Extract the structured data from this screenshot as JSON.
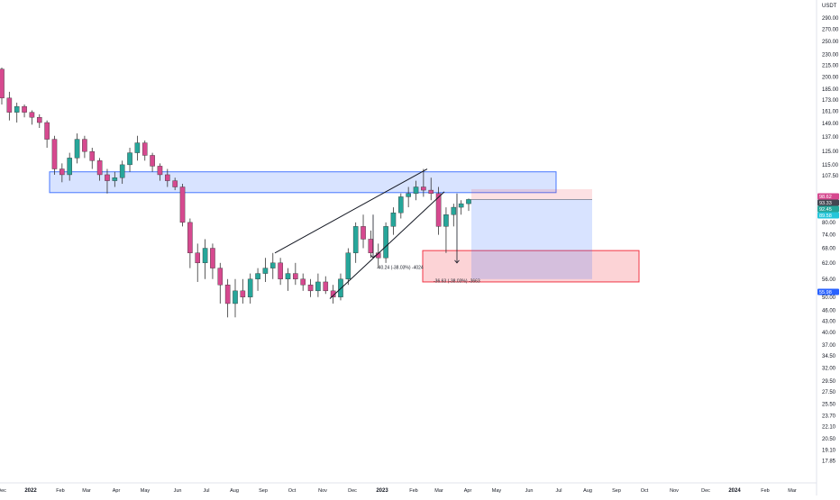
{
  "chart_data": {
    "type": "candlestick",
    "currency": "USDT",
    "y_scale": "log",
    "ylim": [
      17.0,
      310.0
    ],
    "y_ticks": [
      290.0,
      270.0,
      250.0,
      230.0,
      215.0,
      200.0,
      185.0,
      173.0,
      161.0,
      149.0,
      137.0,
      125.0,
      115.0,
      107.5,
      86.0,
      80.0,
      74.0,
      68.0,
      62.0,
      56.0,
      50.0,
      46.0,
      43.0,
      40.0,
      37.0,
      34.5,
      32.0,
      29.5,
      27.5,
      25.5,
      23.7,
      22.1,
      20.5,
      19.1,
      17.85
    ],
    "y_tick_labels": [
      "290.00",
      "270.00",
      "250.00",
      "230.00",
      "215.00",
      "200.00",
      "185.00",
      "173.00",
      "161.00",
      "149.00",
      "137.00",
      "125.00",
      "115.00",
      "107.50",
      "86.00",
      "80.00",
      "74.00",
      "68.00",
      "62.00",
      "56.00",
      "50.00",
      "46.00",
      "43.00",
      "40.00",
      "37.00",
      "34.50",
      "32.00",
      "29.50",
      "27.50",
      "25.50",
      "23.70",
      "22.10",
      "20.50",
      "19.10",
      "17.85"
    ],
    "x_ticks": [
      "Dec",
      "2022",
      "Feb",
      "Mar",
      "Apr",
      "May",
      "Jun",
      "Jul",
      "Aug",
      "Sep",
      "Oct",
      "Nov",
      "Dec",
      "2023",
      "Feb",
      "Mar",
      "Apr",
      "May",
      "Jun",
      "Jul",
      "Aug",
      "Sep",
      "Oct",
      "Nov",
      "Dec",
      "2024",
      "Feb",
      "Mar"
    ],
    "x_tick_bold": [
      "2022",
      "2023",
      "2024"
    ],
    "price_badges": [
      {
        "value": "98.62",
        "color": "#d6498f"
      },
      {
        "value": "93.33",
        "color": "#434651"
      },
      {
        "value": "92.45",
        "color": "#26a69a"
      },
      {
        "value": "89.58",
        "color": "#26c6da"
      },
      {
        "value": "55.98",
        "color": "#2962ff"
      }
    ],
    "annotations": [
      {
        "text": "-40.24 (-38.03%) -4024"
      },
      {
        "text": "-36.63 (-38.03%) -3663"
      }
    ],
    "candles": [
      [
        210,
        212,
        168,
        175
      ],
      [
        175,
        182,
        152,
        160
      ],
      [
        160,
        170,
        150,
        166
      ],
      [
        166,
        168,
        155,
        160
      ],
      [
        160,
        162,
        148,
        155
      ],
      [
        155,
        158,
        145,
        150
      ],
      [
        150,
        152,
        128,
        135
      ],
      [
        135,
        138,
        108,
        112
      ],
      [
        112,
        116,
        103,
        108
      ],
      [
        108,
        124,
        104,
        120
      ],
      [
        120,
        140,
        116,
        135
      ],
      [
        135,
        138,
        120,
        125
      ],
      [
        125,
        128,
        112,
        118
      ],
      [
        118,
        120,
        104,
        108
      ],
      [
        108,
        112,
        96,
        104
      ],
      [
        104,
        110,
        100,
        106
      ],
      [
        106,
        118,
        102,
        115
      ],
      [
        115,
        128,
        110,
        124
      ],
      [
        124,
        138,
        118,
        132
      ],
      [
        132,
        134,
        118,
        122
      ],
      [
        122,
        124,
        110,
        114
      ],
      [
        114,
        116,
        104,
        108
      ],
      [
        108,
        112,
        100,
        104
      ],
      [
        104,
        106,
        98,
        100
      ],
      [
        100,
        102,
        78,
        80
      ],
      [
        80,
        82,
        60,
        66
      ],
      [
        66,
        70,
        55,
        62
      ],
      [
        62,
        72,
        56,
        68
      ],
      [
        68,
        70,
        56,
        60
      ],
      [
        60,
        62,
        48,
        54
      ],
      [
        54,
        56,
        44,
        48
      ],
      [
        48,
        56,
        44,
        52
      ],
      [
        52,
        56,
        48,
        50
      ],
      [
        50,
        58,
        48,
        56
      ],
      [
        56,
        60,
        52,
        58
      ],
      [
        58,
        64,
        55,
        60
      ],
      [
        60,
        66,
        56,
        62
      ],
      [
        62,
        64,
        54,
        56
      ],
      [
        56,
        60,
        52,
        58
      ],
      [
        58,
        62,
        54,
        56
      ],
      [
        56,
        58,
        52,
        54
      ],
      [
        54,
        56,
        50,
        52
      ],
      [
        52,
        58,
        50,
        55
      ],
      [
        55,
        57,
        51,
        52
      ],
      [
        52,
        54,
        48,
        50
      ],
      [
        50,
        58,
        49,
        56
      ],
      [
        56,
        68,
        54,
        66
      ],
      [
        66,
        80,
        62,
        78
      ],
      [
        78,
        84,
        68,
        72
      ],
      [
        72,
        76,
        64,
        66
      ],
      [
        66,
        70,
        60,
        64
      ],
      [
        64,
        80,
        62,
        78
      ],
      [
        78,
        88,
        74,
        85
      ],
      [
        85,
        96,
        82,
        94
      ],
      [
        94,
        100,
        88,
        96
      ],
      [
        96,
        104,
        92,
        100
      ],
      [
        100,
        112,
        94,
        98
      ],
      [
        98,
        106,
        92,
        96
      ],
      [
        96,
        100,
        74,
        78
      ],
      [
        78,
        88,
        66,
        84
      ],
      [
        84,
        90,
        78,
        88
      ],
      [
        88,
        92,
        84,
        90
      ],
      [
        90,
        93,
        86,
        92.45
      ]
    ],
    "zones": [
      {
        "name": "resistance",
        "y1": 96.5,
        "y2": 110.0,
        "color": "#2962ff"
      },
      {
        "name": "target",
        "y1": 55.0,
        "y2": 67.0,
        "color": "#f23645"
      },
      {
        "name": "short-stop",
        "y1": 92.45,
        "y2": 98.62,
        "color": "#f23645"
      },
      {
        "name": "short-profit",
        "y1": 55.98,
        "y2": 92.45,
        "color": "#2962ff"
      }
    ],
    "wedge_lines": [
      {
        "from": [
          305,
          66.0
        ],
        "to": [
          474,
          112.0
        ]
      },
      {
        "from": [
          366,
          49.5
        ],
        "to": [
          493,
          97.0
        ]
      }
    ]
  }
}
